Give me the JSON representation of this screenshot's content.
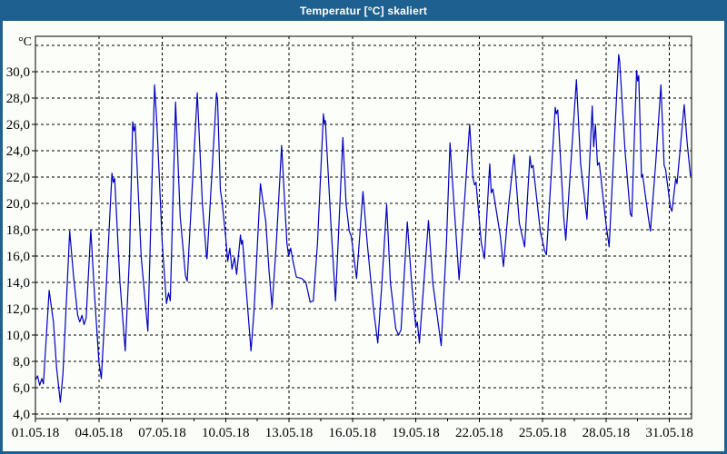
{
  "window": {
    "title": "Temperatur [°C] skaliert"
  },
  "colors": {
    "titlebar_bg": "#1e6190",
    "frame": "#1e6190",
    "title_text": "#ffffff",
    "plot_bg": "#fcfef9",
    "grid": "#000000",
    "axis": "#000000",
    "line": "#0000bf"
  },
  "chart_data": {
    "type": "line",
    "title": "Temperatur [°C] skaliert",
    "y_unit_label": "°C",
    "grid": true,
    "ylim": [
      3.66,
      32.69
    ],
    "xlim_days": [
      0,
      31.05
    ],
    "y_ticks": [
      {
        "value": 30,
        "label": "30,0"
      },
      {
        "value": 28,
        "label": "28,0"
      },
      {
        "value": 26,
        "label": "26,0"
      },
      {
        "value": 24,
        "label": "24,0"
      },
      {
        "value": 22,
        "label": "22,0"
      },
      {
        "value": 20,
        "label": "20,0"
      },
      {
        "value": 18,
        "label": "18,0"
      },
      {
        "value": 16,
        "label": "16,0"
      },
      {
        "value": 14,
        "label": "14,0"
      },
      {
        "value": 12,
        "label": "12,0"
      },
      {
        "value": 10,
        "label": "10,0"
      },
      {
        "value": 8,
        "label": "8,0"
      },
      {
        "value": 6,
        "label": "6,0"
      },
      {
        "value": 4,
        "label": "4,0"
      }
    ],
    "y_gridlines": [
      32,
      30,
      28,
      26,
      24,
      22,
      20,
      18,
      16,
      14,
      12,
      10,
      8,
      6,
      4
    ],
    "x_ticks": [
      {
        "day": 0,
        "label": "01.05.18"
      },
      {
        "day": 3,
        "label": "04.05.18"
      },
      {
        "day": 6,
        "label": "07.05.18"
      },
      {
        "day": 9,
        "label": "10.05.18"
      },
      {
        "day": 12,
        "label": "13.05.18"
      },
      {
        "day": 15,
        "label": "16.05.18"
      },
      {
        "day": 18,
        "label": "19.05.18"
      },
      {
        "day": 21,
        "label": "22.05.18"
      },
      {
        "day": 24,
        "label": "25.05.18"
      },
      {
        "day": 27,
        "label": "28.05.18"
      },
      {
        "day": 30,
        "label": "31.05.18"
      }
    ],
    "x_minor_tick_days": [
      1.5,
      4.5,
      7.5,
      10.5,
      13.5,
      16.5,
      19.5,
      22.5,
      25.5,
      28.5
    ],
    "x_gridline_days": [
      3,
      6,
      9,
      12,
      15,
      18,
      21,
      24,
      27,
      30
    ],
    "series": [
      {
        "name": "Temperatur",
        "color": "#0000bf",
        "points": [
          [
            0.0,
            6.6
          ],
          [
            0.1,
            6.9
          ],
          [
            0.2,
            6.2
          ],
          [
            0.3,
            6.7
          ],
          [
            0.38,
            6.3
          ],
          [
            0.65,
            13.4
          ],
          [
            0.75,
            12.2
          ],
          [
            0.85,
            11.0
          ],
          [
            1.0,
            7.5
          ],
          [
            1.18,
            4.9
          ],
          [
            1.3,
            7.0
          ],
          [
            1.45,
            12.0
          ],
          [
            1.62,
            17.9
          ],
          [
            1.8,
            14.5
          ],
          [
            2.0,
            11.5
          ],
          [
            2.1,
            11.0
          ],
          [
            2.2,
            11.5
          ],
          [
            2.3,
            10.8
          ],
          [
            2.4,
            11.3
          ],
          [
            2.62,
            18.0
          ],
          [
            2.8,
            13.0
          ],
          [
            3.0,
            8.0
          ],
          [
            3.12,
            6.7
          ],
          [
            3.3,
            12.0
          ],
          [
            3.62,
            22.3
          ],
          [
            3.68,
            21.6
          ],
          [
            3.75,
            21.9
          ],
          [
            4.0,
            14.0
          ],
          [
            4.25,
            8.8
          ],
          [
            4.45,
            16.0
          ],
          [
            4.6,
            26.2
          ],
          [
            4.66,
            25.5
          ],
          [
            4.72,
            25.9
          ],
          [
            5.0,
            16.0
          ],
          [
            5.32,
            10.3
          ],
          [
            5.64,
            29.0
          ],
          [
            5.75,
            26.0
          ],
          [
            6.0,
            17.0
          ],
          [
            6.2,
            12.4
          ],
          [
            6.3,
            13.2
          ],
          [
            6.38,
            12.6
          ],
          [
            6.63,
            27.7
          ],
          [
            6.85,
            19.0
          ],
          [
            7.1,
            14.5
          ],
          [
            7.18,
            14.1
          ],
          [
            7.66,
            28.4
          ],
          [
            7.9,
            20.0
          ],
          [
            8.1,
            15.9
          ],
          [
            8.12,
            15.8
          ],
          [
            8.57,
            28.4
          ],
          [
            8.62,
            27.9
          ],
          [
            8.75,
            21.0
          ],
          [
            8.82,
            20.3
          ],
          [
            9.0,
            17.5
          ],
          [
            9.1,
            15.6
          ],
          [
            9.2,
            16.6
          ],
          [
            9.3,
            15.0
          ],
          [
            9.42,
            15.9
          ],
          [
            9.52,
            14.6
          ],
          [
            9.7,
            17.6
          ],
          [
            9.75,
            16.9
          ],
          [
            9.8,
            17.2
          ],
          [
            10.0,
            13.0
          ],
          [
            10.2,
            8.8
          ],
          [
            10.35,
            12.0
          ],
          [
            10.65,
            21.5
          ],
          [
            10.9,
            18.6
          ],
          [
            11.05,
            15.0
          ],
          [
            11.2,
            12.1
          ],
          [
            11.4,
            17.0
          ],
          [
            11.65,
            24.4
          ],
          [
            11.9,
            17.0
          ],
          [
            11.98,
            16.0
          ],
          [
            12.08,
            16.6
          ],
          [
            12.2,
            15.5
          ],
          [
            12.35,
            14.4
          ],
          [
            12.6,
            14.3
          ],
          [
            12.8,
            14.0
          ],
          [
            13.0,
            12.5
          ],
          [
            13.15,
            12.6
          ],
          [
            13.35,
            17.0
          ],
          [
            13.63,
            26.8
          ],
          [
            13.68,
            26.0
          ],
          [
            13.72,
            26.3
          ],
          [
            14.0,
            18.0
          ],
          [
            14.2,
            12.6
          ],
          [
            14.55,
            25.0
          ],
          [
            14.7,
            20.0
          ],
          [
            14.85,
            17.9
          ],
          [
            14.95,
            17.5
          ],
          [
            15.2,
            14.3
          ],
          [
            15.5,
            20.9
          ],
          [
            15.7,
            17.0
          ],
          [
            16.0,
            12.0
          ],
          [
            16.2,
            9.4
          ],
          [
            16.4,
            14.0
          ],
          [
            16.62,
            19.9
          ],
          [
            16.8,
            14.0
          ],
          [
            17.05,
            10.5
          ],
          [
            17.18,
            10.0
          ],
          [
            17.3,
            10.4
          ],
          [
            17.6,
            18.6
          ],
          [
            17.8,
            14.0
          ],
          [
            18.0,
            10.6
          ],
          [
            18.07,
            11.0
          ],
          [
            18.17,
            9.4
          ],
          [
            18.6,
            18.7
          ],
          [
            18.8,
            14.0
          ],
          [
            19.2,
            9.2
          ],
          [
            19.45,
            17.0
          ],
          [
            19.62,
            24.6
          ],
          [
            19.7,
            22.5
          ],
          [
            20.05,
            14.2
          ],
          [
            20.3,
            20.0
          ],
          [
            20.55,
            26.0
          ],
          [
            20.7,
            22.0
          ],
          [
            20.78,
            21.4
          ],
          [
            20.85,
            21.6
          ],
          [
            21.1,
            17.0
          ],
          [
            21.25,
            15.8
          ],
          [
            21.5,
            23.0
          ],
          [
            21.57,
            20.8
          ],
          [
            21.65,
            21.1
          ],
          [
            22.0,
            17.5
          ],
          [
            22.15,
            15.2
          ],
          [
            22.4,
            20.0
          ],
          [
            22.65,
            23.7
          ],
          [
            22.9,
            18.5
          ],
          [
            23.15,
            16.7
          ],
          [
            23.4,
            23.6
          ],
          [
            23.47,
            22.7
          ],
          [
            23.55,
            22.9
          ],
          [
            23.9,
            17.8
          ],
          [
            24.1,
            16.4
          ],
          [
            24.18,
            16.1
          ],
          [
            24.6,
            27.3
          ],
          [
            24.65,
            26.8
          ],
          [
            24.72,
            27.1
          ],
          [
            25.0,
            19.0
          ],
          [
            25.1,
            17.2
          ],
          [
            25.6,
            29.4
          ],
          [
            25.8,
            23.0
          ],
          [
            26.1,
            18.8
          ],
          [
            26.35,
            27.4
          ],
          [
            26.42,
            24.3
          ],
          [
            26.5,
            26.0
          ],
          [
            26.6,
            22.9
          ],
          [
            26.68,
            23.1
          ],
          [
            27.0,
            18.5
          ],
          [
            27.15,
            16.7
          ],
          [
            27.6,
            31.3
          ],
          [
            27.65,
            30.8
          ],
          [
            27.9,
            24.0
          ],
          [
            28.15,
            19.2
          ],
          [
            28.22,
            19.0
          ],
          [
            28.45,
            30.1
          ],
          [
            28.5,
            29.3
          ],
          [
            28.55,
            29.7
          ],
          [
            28.68,
            22.0
          ],
          [
            28.73,
            22.2
          ],
          [
            29.0,
            19.0
          ],
          [
            29.1,
            17.9
          ],
          [
            29.35,
            23.0
          ],
          [
            29.6,
            29.0
          ],
          [
            29.75,
            22.9
          ],
          [
            29.82,
            22.6
          ],
          [
            30.05,
            19.7
          ],
          [
            30.12,
            19.4
          ],
          [
            30.3,
            21.9
          ],
          [
            30.36,
            21.5
          ],
          [
            30.7,
            27.5
          ],
          [
            30.85,
            24.5
          ],
          [
            31.0,
            22.1
          ]
        ]
      }
    ]
  }
}
